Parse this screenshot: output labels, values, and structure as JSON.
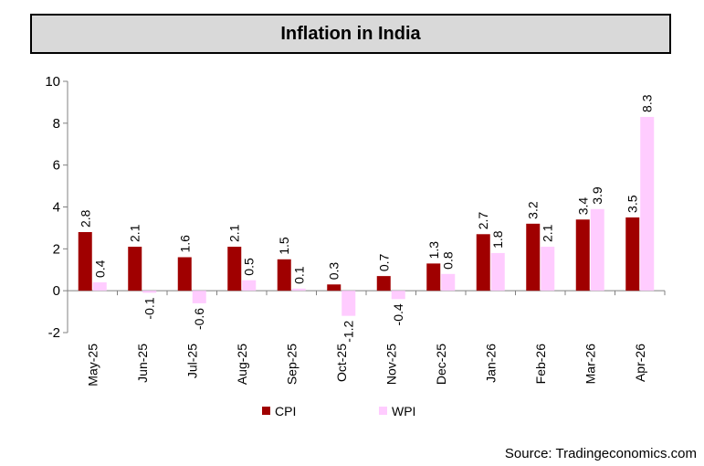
{
  "chart_data": {
    "type": "bar",
    "title": "Inflation in India",
    "categories": [
      "May-25",
      "Jun-25",
      "Jul-25",
      "Aug-25",
      "Sep-25",
      "Oct-25",
      "Nov-25",
      "Dec-25",
      "Jan-26",
      "Feb-26",
      "Mar-26",
      "Apr-26"
    ],
    "series": [
      {
        "name": "CPI",
        "color": "#a00000",
        "values": [
          2.8,
          2.1,
          1.6,
          2.1,
          1.5,
          0.3,
          0.7,
          1.3,
          2.7,
          3.2,
          3.4,
          3.5
        ]
      },
      {
        "name": "WPI",
        "color": "#ffccff",
        "values": [
          0.4,
          -0.1,
          -0.6,
          0.5,
          0.1,
          -1.2,
          -0.4,
          0.8,
          1.8,
          2.1,
          3.9,
          8.3
        ]
      }
    ],
    "ylim": [
      -2,
      10
    ],
    "yticks": [
      -2,
      0,
      2,
      4,
      6,
      8,
      10
    ],
    "grid": false,
    "legend": "bottom-center"
  },
  "source": "Source: Tradingeconomics.com"
}
